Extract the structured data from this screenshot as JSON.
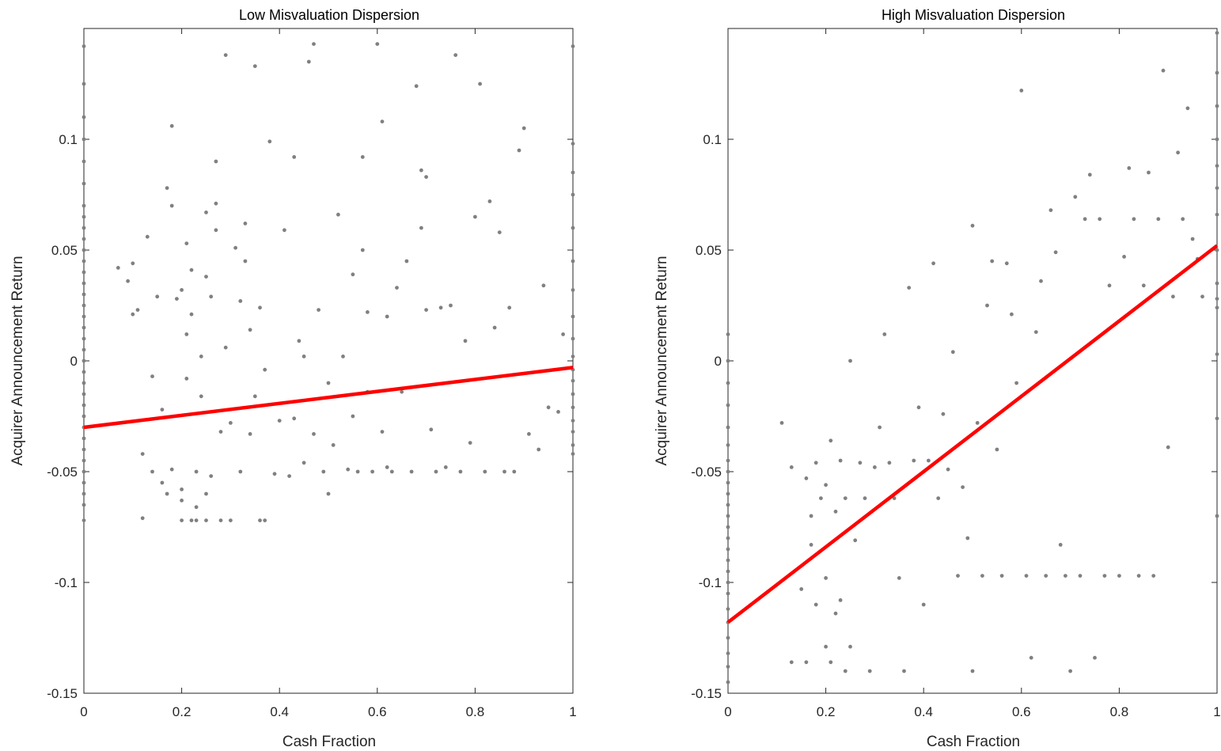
{
  "figure": {
    "background": "#ffffff"
  },
  "chart_data": [
    {
      "type": "scatter",
      "title": "Low Misvaluation Dispersion",
      "xlabel": "Cash Fraction",
      "ylabel": "Acquirer Announcement Return",
      "xlim": [
        0,
        1
      ],
      "ylim": [
        -0.15,
        0.15
      ],
      "xticks": [
        0,
        0.2,
        0.4,
        0.6,
        0.8,
        1
      ],
      "xtick_labels": [
        "0",
        "0.2",
        "0.4",
        "0.6",
        "0.8",
        "1"
      ],
      "yticks": [
        -0.15,
        -0.1,
        -0.05,
        0,
        0.05,
        0.1
      ],
      "ytick_labels": [
        "-0.15",
        "-0.1",
        "-0.05",
        "0",
        "0.05",
        "0.1"
      ],
      "grid": false,
      "point_color": "#808080",
      "fit_color": "#ff0000",
      "fit_line": {
        "x": [
          0,
          1
        ],
        "y": [
          -0.03,
          -0.003
        ]
      },
      "points": [
        [
          0,
          -0.072
        ],
        [
          0,
          -0.065
        ],
        [
          0,
          -0.06
        ],
        [
          0,
          -0.055
        ],
        [
          0,
          -0.05
        ],
        [
          0,
          -0.045
        ],
        [
          0,
          -0.04
        ],
        [
          0,
          -0.035
        ],
        [
          0,
          -0.03
        ],
        [
          0,
          -0.025
        ],
        [
          0,
          -0.02
        ],
        [
          0,
          -0.015
        ],
        [
          0,
          -0.01
        ],
        [
          0,
          -0.005
        ],
        [
          0,
          0.0
        ],
        [
          0,
          0.005
        ],
        [
          0,
          0.01
        ],
        [
          0,
          0.015
        ],
        [
          0,
          0.02
        ],
        [
          0,
          0.025
        ],
        [
          0,
          0.03
        ],
        [
          0,
          0.035
        ],
        [
          0,
          0.04
        ],
        [
          0,
          0.045
        ],
        [
          0,
          0.05
        ],
        [
          0,
          0.055
        ],
        [
          0,
          0.06
        ],
        [
          0,
          0.065
        ],
        [
          0,
          0.07
        ],
        [
          0,
          0.08
        ],
        [
          0,
          0.09
        ],
        [
          0,
          0.1
        ],
        [
          0,
          0.11
        ],
        [
          0,
          0.125
        ],
        [
          0,
          0.142
        ],
        [
          0.07,
          0.042
        ],
        [
          0.09,
          0.036
        ],
        [
          0.1,
          0.044
        ],
        [
          0.1,
          0.021
        ],
        [
          0.11,
          0.023
        ],
        [
          0.12,
          -0.042
        ],
        [
          0.12,
          -0.071
        ],
        [
          0.13,
          0.056
        ],
        [
          0.14,
          -0.007
        ],
        [
          0.14,
          -0.05
        ],
        [
          0.15,
          0.029
        ],
        [
          0.16,
          -0.022
        ],
        [
          0.16,
          -0.055
        ],
        [
          0.17,
          0.078
        ],
        [
          0.17,
          -0.06
        ],
        [
          0.18,
          0.07
        ],
        [
          0.18,
          0.106
        ],
        [
          0.18,
          -0.049
        ],
        [
          0.19,
          0.028
        ],
        [
          0.2,
          0.032
        ],
        [
          0.2,
          -0.072
        ],
        [
          0.2,
          -0.063
        ],
        [
          0.2,
          -0.058
        ],
        [
          0.21,
          0.053
        ],
        [
          0.21,
          0.012
        ],
        [
          0.21,
          -0.008
        ],
        [
          0.22,
          0.041
        ],
        [
          0.22,
          0.021
        ],
        [
          0.22,
          -0.072
        ],
        [
          0.23,
          -0.072
        ],
        [
          0.23,
          -0.05
        ],
        [
          0.23,
          -0.066
        ],
        [
          0.24,
          0.002
        ],
        [
          0.24,
          -0.016
        ],
        [
          0.25,
          0.067
        ],
        [
          0.25,
          0.038
        ],
        [
          0.25,
          -0.06
        ],
        [
          0.25,
          -0.072
        ],
        [
          0.26,
          0.029
        ],
        [
          0.26,
          -0.052
        ],
        [
          0.27,
          0.09
        ],
        [
          0.27,
          0.059
        ],
        [
          0.27,
          0.071
        ],
        [
          0.28,
          -0.032
        ],
        [
          0.28,
          -0.072
        ],
        [
          0.29,
          0.138
        ],
        [
          0.29,
          0.006
        ],
        [
          0.3,
          -0.028
        ],
        [
          0.3,
          -0.072
        ],
        [
          0.31,
          0.051
        ],
        [
          0.32,
          0.027
        ],
        [
          0.32,
          -0.05
        ],
        [
          0.33,
          0.062
        ],
        [
          0.33,
          0.045
        ],
        [
          0.34,
          0.014
        ],
        [
          0.34,
          -0.033
        ],
        [
          0.35,
          0.133
        ],
        [
          0.35,
          -0.016
        ],
        [
          0.36,
          0.024
        ],
        [
          0.36,
          -0.072
        ],
        [
          0.37,
          -0.072
        ],
        [
          0.37,
          -0.004
        ],
        [
          0.38,
          0.099
        ],
        [
          0.39,
          -0.051
        ],
        [
          0.4,
          -0.027
        ],
        [
          0.41,
          0.059
        ],
        [
          0.42,
          -0.052
        ],
        [
          0.43,
          0.092
        ],
        [
          0.43,
          -0.026
        ],
        [
          0.44,
          0.009
        ],
        [
          0.45,
          -0.046
        ],
        [
          0.45,
          0.002
        ],
        [
          0.46,
          0.135
        ],
        [
          0.47,
          0.143
        ],
        [
          0.47,
          -0.033
        ],
        [
          0.48,
          0.023
        ],
        [
          0.49,
          -0.05
        ],
        [
          0.5,
          -0.01
        ],
        [
          0.5,
          -0.06
        ],
        [
          0.51,
          -0.038
        ],
        [
          0.52,
          0.066
        ],
        [
          0.53,
          0.002
        ],
        [
          0.54,
          -0.049
        ],
        [
          0.55,
          0.039
        ],
        [
          0.55,
          -0.025
        ],
        [
          0.56,
          -0.05
        ],
        [
          0.57,
          0.092
        ],
        [
          0.57,
          0.05
        ],
        [
          0.58,
          0.022
        ],
        [
          0.58,
          -0.014
        ],
        [
          0.59,
          -0.05
        ],
        [
          0.6,
          0.143
        ],
        [
          0.61,
          0.108
        ],
        [
          0.61,
          -0.032
        ],
        [
          0.62,
          0.02
        ],
        [
          0.62,
          -0.048
        ],
        [
          0.63,
          -0.05
        ],
        [
          0.64,
          0.033
        ],
        [
          0.65,
          -0.014
        ],
        [
          0.66,
          0.045
        ],
        [
          0.67,
          -0.05
        ],
        [
          0.68,
          0.124
        ],
        [
          0.69,
          0.086
        ],
        [
          0.69,
          0.06
        ],
        [
          0.7,
          0.083
        ],
        [
          0.7,
          0.023
        ],
        [
          0.71,
          -0.031
        ],
        [
          0.72,
          -0.05
        ],
        [
          0.73,
          0.024
        ],
        [
          0.74,
          -0.048
        ],
        [
          0.75,
          0.025
        ],
        [
          0.76,
          0.138
        ],
        [
          0.77,
          -0.05
        ],
        [
          0.78,
          0.009
        ],
        [
          0.79,
          -0.037
        ],
        [
          0.8,
          0.065
        ],
        [
          0.81,
          0.125
        ],
        [
          0.82,
          -0.05
        ],
        [
          0.83,
          0.072
        ],
        [
          0.84,
          0.015
        ],
        [
          0.85,
          0.058
        ],
        [
          0.86,
          -0.05
        ],
        [
          0.87,
          0.024
        ],
        [
          0.88,
          -0.05
        ],
        [
          0.89,
          0.095
        ],
        [
          0.9,
          0.105
        ],
        [
          0.91,
          -0.033
        ],
        [
          0.93,
          -0.04
        ],
        [
          0.94,
          0.034
        ],
        [
          0.95,
          -0.021
        ],
        [
          0.97,
          -0.023
        ],
        [
          0.98,
          0.012
        ],
        [
          1,
          -0.042
        ],
        [
          1,
          -0.038
        ],
        [
          1,
          -0.032
        ],
        [
          1,
          -0.027
        ],
        [
          1,
          -0.021
        ],
        [
          1,
          -0.015
        ],
        [
          1,
          -0.009
        ],
        [
          1,
          -0.004
        ],
        [
          1,
          0.002
        ],
        [
          1,
          0.01
        ],
        [
          1,
          0.02
        ],
        [
          1,
          0.032
        ],
        [
          1,
          0.045
        ],
        [
          1,
          0.06
        ],
        [
          1,
          0.075
        ],
        [
          1,
          0.085
        ],
        [
          1,
          0.098
        ],
        [
          1,
          0.142
        ]
      ]
    },
    {
      "type": "scatter",
      "title": "High Misvaluation Dispersion",
      "xlabel": "Cash Fraction",
      "ylabel": "Acquirer Announcement Return",
      "xlim": [
        0,
        1
      ],
      "ylim": [
        -0.15,
        0.15
      ],
      "xticks": [
        0,
        0.2,
        0.4,
        0.6,
        0.8,
        1
      ],
      "xtick_labels": [
        "0",
        "0.2",
        "0.4",
        "0.6",
        "0.8",
        "1"
      ],
      "yticks": [
        -0.15,
        -0.1,
        -0.05,
        0,
        0.05,
        0.1
      ],
      "ytick_labels": [
        "-0.15",
        "-0.1",
        "-0.05",
        "0",
        "0.05",
        "0.1"
      ],
      "grid": false,
      "point_color": "#808080",
      "fit_color": "#ff0000",
      "fit_line": {
        "x": [
          0,
          1
        ],
        "y": [
          -0.118,
          0.052
        ]
      },
      "points": [
        [
          0,
          -0.145
        ],
        [
          0,
          -0.138
        ],
        [
          0,
          -0.132
        ],
        [
          0,
          -0.125
        ],
        [
          0,
          -0.118
        ],
        [
          0,
          -0.112
        ],
        [
          0,
          -0.105
        ],
        [
          0,
          -0.1
        ],
        [
          0,
          -0.095
        ],
        [
          0,
          -0.09
        ],
        [
          0,
          -0.085
        ],
        [
          0,
          -0.08
        ],
        [
          0,
          -0.075
        ],
        [
          0,
          -0.07
        ],
        [
          0,
          -0.065
        ],
        [
          0,
          -0.06
        ],
        [
          0,
          -0.055
        ],
        [
          0,
          -0.05
        ],
        [
          0,
          -0.045
        ],
        [
          0,
          -0.038
        ],
        [
          0,
          -0.03
        ],
        [
          0,
          -0.02
        ],
        [
          0,
          -0.01
        ],
        [
          0,
          0.0
        ],
        [
          0,
          0.012
        ],
        [
          0.11,
          -0.028
        ],
        [
          0.13,
          -0.048
        ],
        [
          0.13,
          -0.136
        ],
        [
          0.15,
          -0.103
        ],
        [
          0.16,
          -0.053
        ],
        [
          0.16,
          -0.136
        ],
        [
          0.17,
          -0.07
        ],
        [
          0.17,
          -0.083
        ],
        [
          0.18,
          -0.11
        ],
        [
          0.18,
          -0.046
        ],
        [
          0.19,
          -0.062
        ],
        [
          0.2,
          -0.056
        ],
        [
          0.2,
          -0.129
        ],
        [
          0.2,
          -0.098
        ],
        [
          0.21,
          -0.136
        ],
        [
          0.21,
          -0.036
        ],
        [
          0.22,
          -0.068
        ],
        [
          0.22,
          -0.114
        ],
        [
          0.23,
          -0.045
        ],
        [
          0.23,
          -0.108
        ],
        [
          0.24,
          -0.062
        ],
        [
          0.24,
          -0.14
        ],
        [
          0.25,
          -0.129
        ],
        [
          0.25,
          0.0
        ],
        [
          0.26,
          -0.081
        ],
        [
          0.27,
          -0.046
        ],
        [
          0.28,
          -0.062
        ],
        [
          0.29,
          -0.14
        ],
        [
          0.3,
          -0.048
        ],
        [
          0.31,
          -0.03
        ],
        [
          0.32,
          0.012
        ],
        [
          0.33,
          -0.046
        ],
        [
          0.34,
          -0.062
        ],
        [
          0.35,
          -0.098
        ],
        [
          0.36,
          -0.14
        ],
        [
          0.37,
          0.033
        ],
        [
          0.38,
          -0.045
        ],
        [
          0.39,
          -0.021
        ],
        [
          0.4,
          -0.11
        ],
        [
          0.41,
          -0.045
        ],
        [
          0.42,
          0.044
        ],
        [
          0.43,
          -0.062
        ],
        [
          0.44,
          -0.024
        ],
        [
          0.45,
          -0.049
        ],
        [
          0.46,
          0.004
        ],
        [
          0.47,
          -0.097
        ],
        [
          0.48,
          -0.057
        ],
        [
          0.49,
          -0.08
        ],
        [
          0.5,
          0.061
        ],
        [
          0.5,
          -0.14
        ],
        [
          0.51,
          -0.028
        ],
        [
          0.52,
          -0.097
        ],
        [
          0.53,
          0.025
        ],
        [
          0.54,
          0.045
        ],
        [
          0.55,
          -0.04
        ],
        [
          0.56,
          -0.097
        ],
        [
          0.57,
          0.044
        ],
        [
          0.58,
          0.021
        ],
        [
          0.59,
          -0.01
        ],
        [
          0.6,
          0.122
        ],
        [
          0.61,
          -0.097
        ],
        [
          0.62,
          -0.134
        ],
        [
          0.63,
          0.013
        ],
        [
          0.64,
          0.036
        ],
        [
          0.65,
          -0.097
        ],
        [
          0.66,
          0.068
        ],
        [
          0.67,
          0.049
        ],
        [
          0.68,
          -0.083
        ],
        [
          0.69,
          -0.097
        ],
        [
          0.7,
          -0.14
        ],
        [
          0.71,
          0.074
        ],
        [
          0.72,
          -0.097
        ],
        [
          0.73,
          0.064
        ],
        [
          0.74,
          0.084
        ],
        [
          0.75,
          -0.134
        ],
        [
          0.76,
          0.064
        ],
        [
          0.77,
          -0.097
        ],
        [
          0.78,
          0.034
        ],
        [
          0.8,
          -0.097
        ],
        [
          0.81,
          0.047
        ],
        [
          0.82,
          0.087
        ],
        [
          0.83,
          0.064
        ],
        [
          0.84,
          -0.097
        ],
        [
          0.85,
          0.034
        ],
        [
          0.86,
          0.085
        ],
        [
          0.87,
          -0.097
        ],
        [
          0.88,
          0.064
        ],
        [
          0.89,
          0.131
        ],
        [
          0.9,
          -0.039
        ],
        [
          0.91,
          0.029
        ],
        [
          0.92,
          0.094
        ],
        [
          0.93,
          0.064
        ],
        [
          0.94,
          0.114
        ],
        [
          0.95,
          0.055
        ],
        [
          0.96,
          0.046
        ],
        [
          0.97,
          0.029
        ],
        [
          1,
          -0.07
        ],
        [
          1,
          -0.026
        ],
        [
          1,
          0.003
        ],
        [
          1,
          0.024
        ],
        [
          1,
          0.028
        ],
        [
          1,
          0.035
        ],
        [
          1,
          0.05
        ],
        [
          1,
          0.066
        ],
        [
          1,
          0.078
        ],
        [
          1,
          0.088
        ],
        [
          1,
          0.1
        ],
        [
          1,
          0.115
        ],
        [
          1,
          0.13
        ],
        [
          1,
          0.148
        ]
      ]
    }
  ]
}
